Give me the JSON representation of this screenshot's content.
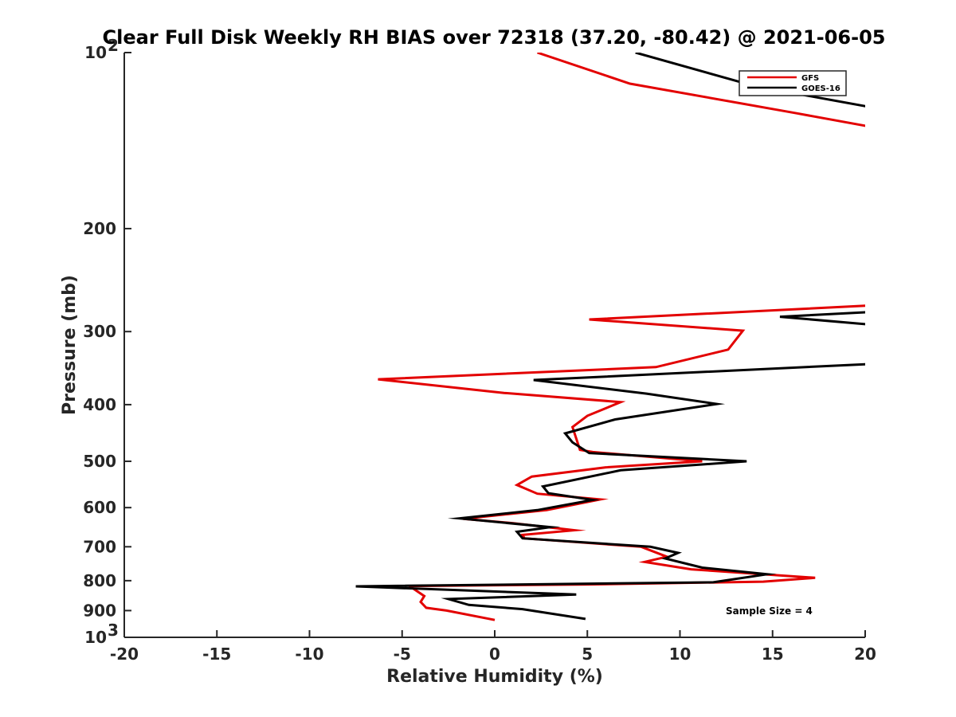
{
  "chart_data": {
    "type": "line",
    "title": "Clear Full Disk Weekly RH BIAS over 72318 (37.20, -80.42) @ 2021-06-05",
    "xlabel": "Relative Humidity (%)",
    "ylabel": "Pressure (mb)",
    "xlim": [
      -20,
      20
    ],
    "ylim": [
      100,
      1000
    ],
    "y_scale": "log",
    "y_reversed": true,
    "x_ticks": [
      "-20",
      "-15",
      "-10",
      "-5",
      "0",
      "5",
      "10",
      "15",
      "20"
    ],
    "y_ticks": [
      {
        "value": 100,
        "base": "10",
        "exp": "2"
      },
      {
        "value": 200,
        "label": "200"
      },
      {
        "value": 300,
        "label": "300"
      },
      {
        "value": 400,
        "label": "400"
      },
      {
        "value": 500,
        "label": "500"
      },
      {
        "value": 600,
        "label": "600"
      },
      {
        "value": 700,
        "label": "700"
      },
      {
        "value": 800,
        "label": "800"
      },
      {
        "value": 900,
        "label": "900"
      },
      {
        "value": 1000,
        "base": "10",
        "exp": "3"
      }
    ],
    "grid": false,
    "legend_position": "top-right",
    "series": [
      {
        "name": "GFS",
        "color": "#e30000",
        "points": [
          [
            2.3,
            100
          ],
          [
            7.3,
            113
          ],
          [
            16.3,
            127
          ],
          [
            20.9,
            135
          ],
          [
            21.0,
            270
          ],
          [
            5.1,
            286
          ],
          [
            13.4,
            299
          ],
          [
            12.6,
            322
          ],
          [
            8.7,
            345
          ],
          [
            -6.3,
            362
          ],
          [
            0.5,
            382
          ],
          [
            6.8,
            396
          ],
          [
            5.0,
            418
          ],
          [
            4.2,
            437
          ],
          [
            4.6,
            478
          ],
          [
            5.3,
            482
          ],
          [
            11.2,
            500
          ],
          [
            6.0,
            512
          ],
          [
            2.0,
            531
          ],
          [
            1.2,
            549
          ],
          [
            2.3,
            568
          ],
          [
            5.7,
            581
          ],
          [
            2.8,
            606
          ],
          [
            -1.7,
            627
          ],
          [
            1.0,
            638
          ],
          [
            4.3,
            656
          ],
          [
            1.5,
            668
          ],
          [
            1.6,
            677
          ],
          [
            7.9,
            700
          ],
          [
            9.3,
            728
          ],
          [
            8.1,
            743
          ],
          [
            10.6,
            765
          ],
          [
            17.3,
            791
          ],
          [
            14.5,
            803
          ],
          [
            5.0,
            812
          ],
          [
            -4.6,
            817
          ],
          [
            -3.8,
            850
          ],
          [
            -4.0,
            870
          ],
          [
            -3.7,
            890
          ],
          [
            -2.6,
            900
          ],
          [
            0.0,
            934
          ]
        ]
      },
      {
        "name": "GOES-16",
        "color": "#000000",
        "points": [
          [
            7.6,
            100
          ],
          [
            14.0,
            114
          ],
          [
            20.9,
            125
          ],
          [
            21.0,
            277
          ],
          [
            15.4,
            283
          ],
          [
            20.9,
            293
          ],
          [
            21.0,
            340
          ],
          [
            2.1,
            363
          ],
          [
            8.2,
            383
          ],
          [
            12.0,
            399
          ],
          [
            6.5,
            424
          ],
          [
            3.8,
            448
          ],
          [
            4.2,
            464
          ],
          [
            5.1,
            484
          ],
          [
            13.6,
            500
          ],
          [
            6.8,
            518
          ],
          [
            2.6,
            552
          ],
          [
            2.9,
            567
          ],
          [
            5.3,
            582
          ],
          [
            2.3,
            606
          ],
          [
            -1.9,
            626
          ],
          [
            3.0,
            648
          ],
          [
            1.2,
            660
          ],
          [
            1.5,
            677
          ],
          [
            8.4,
            700
          ],
          [
            9.9,
            717
          ],
          [
            9.2,
            733
          ],
          [
            11.2,
            760
          ],
          [
            14.7,
            780
          ],
          [
            11.8,
            805
          ],
          [
            -7.5,
            818
          ],
          [
            4.4,
            845
          ],
          [
            -2.5,
            860
          ],
          [
            -1.4,
            880
          ],
          [
            1.5,
            895
          ],
          [
            4.9,
            930
          ]
        ]
      }
    ],
    "annotations": [
      "Sample Size = 4"
    ]
  }
}
